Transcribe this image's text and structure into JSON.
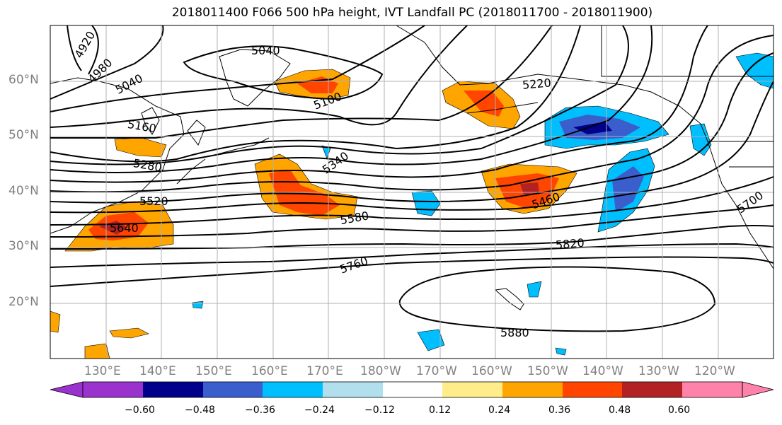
{
  "title": "2018011400 F066 500 hPa height, IVT Landfall PC (2018011700 - 2018011900)",
  "lat_labels": [
    "60°N",
    "50°N",
    "40°N",
    "30°N",
    "20°N"
  ],
  "lon_labels": [
    "130°E",
    "140°E",
    "150°E",
    "160°E",
    "170°E",
    "180°W",
    "170°W",
    "160°W",
    "150°W",
    "140°W",
    "130°W",
    "120°W"
  ],
  "contour_labels": [
    "4920",
    "4980",
    "5040",
    "5040",
    "5100",
    "5160",
    "5220",
    "5280",
    "5340",
    "5460",
    "5520",
    "5580",
    "5640",
    "5700",
    "5760",
    "5820",
    "5880"
  ],
  "colorbar": {
    "ticks": [
      "−0.60",
      "−0.48",
      "−0.36",
      "−0.24",
      "−0.12",
      "0.12",
      "0.24",
      "0.36",
      "0.48",
      "0.60"
    ],
    "colors": [
      "#9a32cd",
      "#00008b",
      "#3a5fcd",
      "#00bfff",
      "#b2dfee",
      "#ffffff",
      "#ffec8b",
      "#ffa500",
      "#ff4500",
      "#b22222",
      "#ff82ab",
      "#ff82ab"
    ]
  }
}
